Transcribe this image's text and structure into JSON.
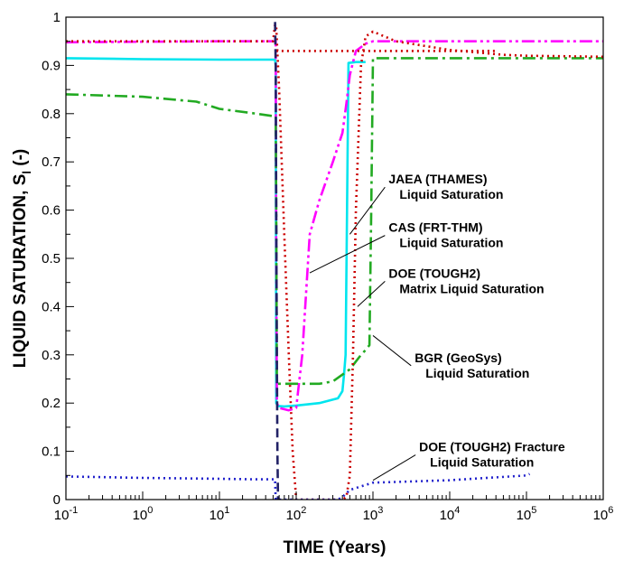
{
  "chart_data": {
    "type": "line",
    "xlabel": "TIME (Years)",
    "ylabel_main": "LIQUID SATURATION, S",
    "ylabel_sub": "l",
    "ylabel_unit": "(-)",
    "xscale": "log",
    "xlim": [
      0.1,
      1000000
    ],
    "ylim": [
      0,
      1
    ],
    "x_ticks": [
      {
        "value": 0.1,
        "base": "10",
        "exp": "-1"
      },
      {
        "value": 1,
        "base": "10",
        "exp": "0"
      },
      {
        "value": 10,
        "base": "10",
        "exp": "1"
      },
      {
        "value": 100,
        "base": "10",
        "exp": "2"
      },
      {
        "value": 1000,
        "base": "10",
        "exp": "3"
      },
      {
        "value": 10000,
        "base": "10",
        "exp": "4"
      },
      {
        "value": 100000,
        "base": "10",
        "exp": "5"
      },
      {
        "value": 1000000,
        "base": "10",
        "exp": "6"
      }
    ],
    "y_ticks": [
      {
        "value": 0,
        "label": "0"
      },
      {
        "value": 0.1,
        "label": "0.1"
      },
      {
        "value": 0.2,
        "label": "0.2"
      },
      {
        "value": 0.3,
        "label": "0.3"
      },
      {
        "value": 0.4,
        "label": "0.4"
      },
      {
        "value": 0.5,
        "label": "0.5"
      },
      {
        "value": 0.6,
        "label": "0.6"
      },
      {
        "value": 0.7,
        "label": "0.7"
      },
      {
        "value": 0.8,
        "label": "0.8"
      },
      {
        "value": 0.9,
        "label": "0.9"
      },
      {
        "value": 1,
        "label": "1"
      }
    ],
    "series": [
      {
        "color": "#00e5ee",
        "dash": "",
        "points": [
          [
            0.1,
            0.915
          ],
          [
            1,
            0.913
          ],
          [
            10,
            0.912
          ],
          [
            50,
            0.912
          ],
          [
            53,
            0.912
          ],
          [
            54,
            0.9
          ],
          [
            55,
            0.2
          ],
          [
            58,
            0.194
          ],
          [
            70,
            0.193
          ],
          [
            100,
            0.195
          ],
          [
            200,
            0.2
          ],
          [
            350,
            0.21
          ],
          [
            400,
            0.225
          ],
          [
            420,
            0.26
          ],
          [
            440,
            0.3
          ],
          [
            460,
            0.6
          ],
          [
            480,
            0.905
          ],
          [
            600,
            0.907
          ],
          [
            800,
            0.907
          ]
        ]
      },
      {
        "color": "#ff00ff",
        "dash": "14,4,3,4,3,4",
        "points": [
          [
            0.1,
            0.948
          ],
          [
            1,
            0.949
          ],
          [
            10,
            0.95
          ],
          [
            50,
            0.95
          ],
          [
            54,
            0.95
          ],
          [
            55,
            0.5
          ],
          [
            56,
            0.2
          ],
          [
            60,
            0.19
          ],
          [
            80,
            0.185
          ],
          [
            100,
            0.19
          ],
          [
            120,
            0.3
          ],
          [
            150,
            0.55
          ],
          [
            200,
            0.62
          ],
          [
            300,
            0.7
          ],
          [
            400,
            0.76
          ],
          [
            450,
            0.82
          ],
          [
            500,
            0.88
          ],
          [
            600,
            0.93
          ],
          [
            800,
            0.945
          ],
          [
            1000,
            0.95
          ],
          [
            10000,
            0.95
          ],
          [
            100000,
            0.95
          ],
          [
            1000000,
            0.95
          ]
        ]
      },
      {
        "color": "#22aa22",
        "dash": "14,5,3,5",
        "points": [
          [
            0.1,
            0.84
          ],
          [
            1,
            0.835
          ],
          [
            5,
            0.825
          ],
          [
            10,
            0.81
          ],
          [
            30,
            0.8
          ],
          [
            50,
            0.795
          ],
          [
            54,
            0.795
          ],
          [
            55,
            0.6
          ],
          [
            56,
            0.24
          ],
          [
            100,
            0.24
          ],
          [
            200,
            0.24
          ],
          [
            300,
            0.245
          ],
          [
            500,
            0.27
          ],
          [
            700,
            0.3
          ],
          [
            800,
            0.31
          ],
          [
            900,
            0.32
          ],
          [
            950,
            0.6
          ],
          [
            1000,
            0.915
          ],
          [
            10000,
            0.915
          ],
          [
            100000,
            0.915
          ],
          [
            1000000,
            0.915
          ]
        ]
      },
      {
        "color": "#cc0000",
        "dash": "2,4",
        "points": [
          [
            0.1,
            0.95
          ],
          [
            1,
            0.95
          ],
          [
            10,
            0.95
          ],
          [
            50,
            0.95
          ],
          [
            53,
            0.985
          ],
          [
            55,
            0.98
          ],
          [
            60,
            0.85
          ],
          [
            70,
            0.55
          ],
          [
            80,
            0.3
          ],
          [
            90,
            0.1
          ],
          [
            100,
            0.0
          ],
          [
            300,
            0.0
          ],
          [
            400,
            0.0
          ],
          [
            450,
            0.005
          ],
          [
            500,
            0.05
          ],
          [
            550,
            0.3
          ],
          [
            600,
            0.6
          ],
          [
            700,
            0.9
          ],
          [
            800,
            0.96
          ],
          [
            1000,
            0.97
          ],
          [
            2000,
            0.95
          ],
          [
            10000,
            0.932
          ],
          [
            50000,
            0.922
          ],
          [
            100000,
            0.92
          ],
          [
            1000000,
            0.918
          ]
        ]
      },
      {
        "color": "#cc0000",
        "dash": "2,4",
        "points": [
          [
            55,
            0.93
          ],
          [
            100,
            0.93
          ],
          [
            1000,
            0.93
          ],
          [
            10000,
            0.93
          ],
          [
            40000,
            0.93
          ]
        ]
      },
      {
        "color": "#2222cc",
        "dash": "2,4",
        "points": [
          [
            0.1,
            0.048
          ],
          [
            1,
            0.045
          ],
          [
            10,
            0.043
          ],
          [
            30,
            0.042
          ],
          [
            53,
            0.042
          ],
          [
            54,
            0.0
          ],
          [
            350,
            0.0
          ],
          [
            400,
            0.005
          ],
          [
            500,
            0.02
          ],
          [
            1000,
            0.035
          ],
          [
            10000,
            0.04
          ],
          [
            100000,
            0.05
          ],
          [
            110000,
            0.053
          ]
        ]
      },
      {
        "color": "#222266",
        "dash": "10,5",
        "points": [
          [
            53,
            0.99
          ],
          [
            54,
            0.9
          ],
          [
            55,
            0.6
          ],
          [
            56,
            0.3
          ],
          [
            57,
            0.1
          ],
          [
            58,
            0.0
          ]
        ]
      }
    ],
    "annotations": [
      {
        "lines": [
          "JAEA (THAMES)",
          "Liquid Saturation"
        ],
        "at": [
          1600,
          0.655
        ],
        "arrow_to": [
          500,
          0.55
        ]
      },
      {
        "lines": [
          "CAS (FRT-THM)",
          "Liquid Saturation"
        ],
        "at": [
          1600,
          0.555
        ],
        "arrow_to": [
          150,
          0.47
        ]
      },
      {
        "lines": [
          "DOE (TOUGH2)",
          "Matrix Liquid Saturation"
        ],
        "at": [
          1600,
          0.46
        ],
        "arrow_to": [
          630,
          0.4
        ]
      },
      {
        "lines": [
          "BGR (GeoSys)",
          "Liquid Saturation"
        ],
        "at": [
          3500,
          0.285
        ],
        "arrow_to": [
          1000,
          0.34
        ]
      },
      {
        "lines": [
          "DOE (TOUGH2) Fracture",
          "Liquid Saturation"
        ],
        "at": [
          4000,
          0.1
        ],
        "arrow_to": [
          1000,
          0.04
        ]
      }
    ]
  }
}
